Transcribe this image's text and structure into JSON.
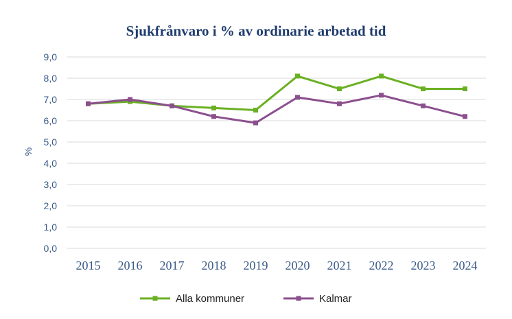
{
  "chart_data": {
    "type": "line",
    "title": "Sjukfrånvaro i % av ordinarie arbetad tid",
    "xlabel": "",
    "ylabel": "%",
    "categories": [
      "2015",
      "2016",
      "2017",
      "2018",
      "2019",
      "2020",
      "2021",
      "2022",
      "2023",
      "2024"
    ],
    "ylim": [
      0,
      9
    ],
    "yticks": [
      "0,0",
      "1,0",
      "2,0",
      "3,0",
      "4,0",
      "5,0",
      "6,0",
      "7,0",
      "8,0",
      "9,0"
    ],
    "ytick_values": [
      0,
      1,
      2,
      3,
      4,
      5,
      6,
      7,
      8,
      9
    ],
    "grid": true,
    "legend_position": "bottom",
    "series": [
      {
        "name": "Alla kommuner",
        "color": "#6ab023",
        "values": [
          6.8,
          6.9,
          6.7,
          6.6,
          6.5,
          8.1,
          7.5,
          8.1,
          7.5,
          7.5
        ]
      },
      {
        "name": "Kalmar",
        "color": "#8b4f8e",
        "values": [
          6.8,
          7.0,
          6.7,
          6.2,
          5.9,
          7.1,
          6.8,
          7.2,
          6.7,
          6.2
        ]
      }
    ],
    "title_color": "#1f3c6e",
    "axis_text_color": "#3a5a88",
    "grid_color": "#d9d9d9"
  }
}
